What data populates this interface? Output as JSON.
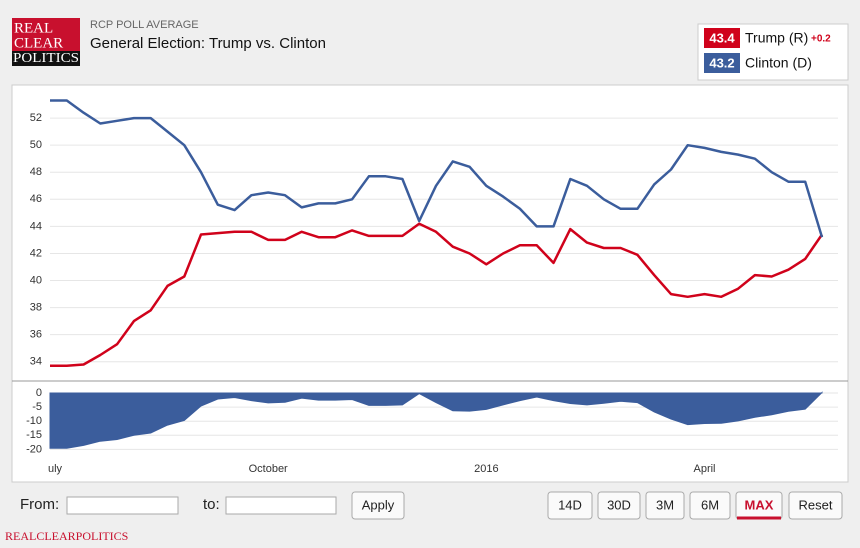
{
  "ui": {
    "logo": [
      "REAL",
      "CLEAR",
      "POLITICS"
    ],
    "kicker": "RCP POLL AVERAGE",
    "title": "General Election: Trump vs. Clinton",
    "from_label": "From:",
    "to_label": "to:",
    "apply": "Apply",
    "ranges": [
      "14D",
      "30D",
      "3M",
      "6M",
      "MAX",
      "Reset"
    ],
    "footer": "REALCLEARPOLITICS"
  },
  "chart_data": [
    {
      "type": "line",
      "categories": [
        "uly",
        null,
        null,
        null,
        null,
        null,
        null,
        null,
        null,
        null,
        null,
        null,
        null,
        "October",
        null,
        null,
        null,
        null,
        null,
        null,
        null,
        null,
        null,
        null,
        null,
        null,
        "2016",
        null,
        null,
        null,
        null,
        null,
        null,
        null,
        null,
        null,
        null,
        null,
        null,
        "April",
        null,
        null,
        null,
        null,
        null,
        null,
        null
      ],
      "series": [
        {
          "name": "Trump (R)",
          "color": "#d0021b",
          "values": [
            33.7,
            33.7,
            33.8,
            34.5,
            35.3,
            37.0,
            37.8,
            39.6,
            40.3,
            43.4,
            43.5,
            43.6,
            43.6,
            43.0,
            43.0,
            43.6,
            43.2,
            43.2,
            43.7,
            43.3,
            43.3,
            43.3,
            44.2,
            43.6,
            42.5,
            42.0,
            41.2,
            42.0,
            42.6,
            42.6,
            41.3,
            43.8,
            42.8,
            42.4,
            42.4,
            41.9,
            40.4,
            39.0,
            38.8,
            39.0,
            38.8,
            39.4,
            40.4,
            40.3,
            40.8,
            41.6,
            43.4
          ]
        },
        {
          "name": "Clinton (D)",
          "color": "#3b5d9c",
          "values": [
            53.3,
            53.3,
            52.4,
            51.6,
            51.8,
            52.0,
            52.0,
            51.0,
            50.0,
            48.0,
            45.6,
            45.2,
            46.3,
            46.5,
            46.3,
            45.4,
            45.7,
            45.7,
            46.0,
            47.7,
            47.7,
            47.5,
            44.4,
            47.0,
            48.8,
            48.4,
            47.0,
            46.2,
            45.3,
            44.0,
            44.0,
            47.5,
            47.0,
            46.0,
            45.3,
            45.3,
            47.1,
            48.2,
            50.0,
            49.8,
            49.5,
            49.3,
            49.0,
            48.0,
            47.3,
            47.3,
            43.2
          ]
        }
      ],
      "ylim": [
        32.8,
        54
      ],
      "yticks": [
        34,
        36,
        38,
        40,
        42,
        44,
        46,
        48,
        50,
        52
      ],
      "grid": true
    },
    {
      "type": "area",
      "color": "#3b5d9c",
      "values": [
        -19.6,
        -19.6,
        -18.6,
        -17.1,
        -16.5,
        -15.0,
        -14.2,
        -11.4,
        -9.7,
        -4.6,
        -2.1,
        -1.6,
        -2.7,
        -3.5,
        -3.3,
        -1.8,
        -2.5,
        -2.5,
        -2.3,
        -4.4,
        -4.4,
        -4.2,
        -0.2,
        -3.4,
        -6.3,
        -6.4,
        -5.8,
        -4.2,
        -2.7,
        -1.4,
        -2.7,
        -3.7,
        -4.2,
        -3.6,
        -2.9,
        -3.4,
        -6.7,
        -9.2,
        -11.2,
        -10.8,
        -10.7,
        -9.9,
        -8.6,
        -7.7,
        -6.5,
        -5.7,
        0.2
      ],
      "value_labels": [
        null,
        null,
        null,
        null,
        null,
        null,
        null,
        null,
        null,
        null,
        null,
        null,
        null,
        null,
        null,
        null,
        null,
        null,
        null,
        null,
        null,
        null,
        null,
        null,
        null,
        null,
        null,
        null,
        null,
        null,
        null,
        null,
        null,
        null,
        null,
        null,
        null,
        null,
        null,
        null,
        null,
        null,
        null,
        null,
        null,
        null,
        "+0.2"
      ],
      "ylim": [
        -22,
        2.5
      ],
      "yticks": [
        0,
        -5,
        -10,
        -15,
        -20
      ],
      "grid": true
    }
  ]
}
